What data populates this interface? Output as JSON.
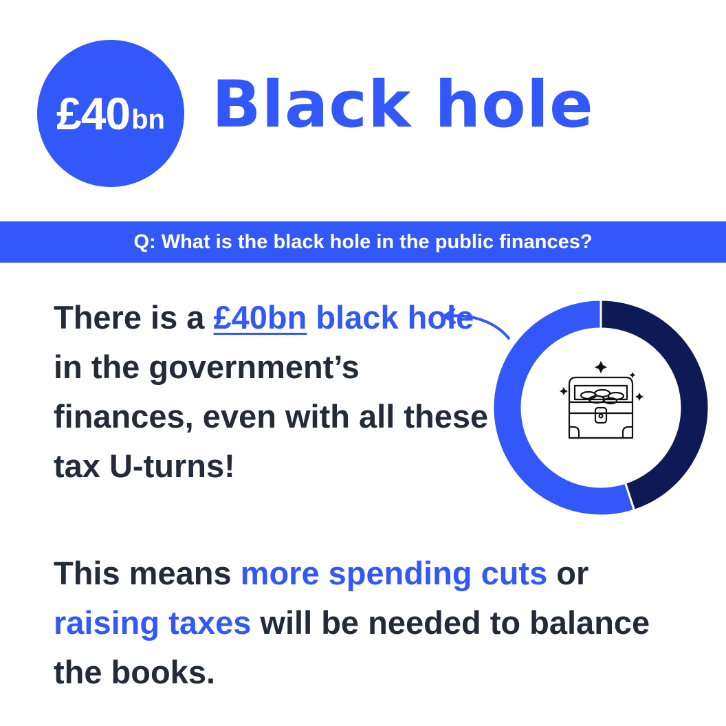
{
  "badge": {
    "amount": "£40",
    "unit": "bn"
  },
  "title": "Black hole",
  "question": "Q: What is the black hole in the public finances?",
  "paragraph1": {
    "text_1": "There is a ",
    "link": "£40bn",
    "hl_1": " black hole",
    "text_2": " in the government’s finances, even with all these tax U-turns!"
  },
  "paragraph2": {
    "text_1": "This means ",
    "hl_1": "more spending cuts",
    "text_2": " or ",
    "hl_2": "raising taxes",
    "text_3": " will be needed to balance the books."
  },
  "donut": {
    "segments": [
      {
        "fraction": 0.45,
        "color": "#0e1a56"
      },
      {
        "fraction": 0.55,
        "color": "#3358fa"
      }
    ],
    "center_icon": "treasure-chest-icon"
  },
  "colors": {
    "accent": "#3358fa",
    "dark": "#0e1a56",
    "text": "#232a38"
  }
}
